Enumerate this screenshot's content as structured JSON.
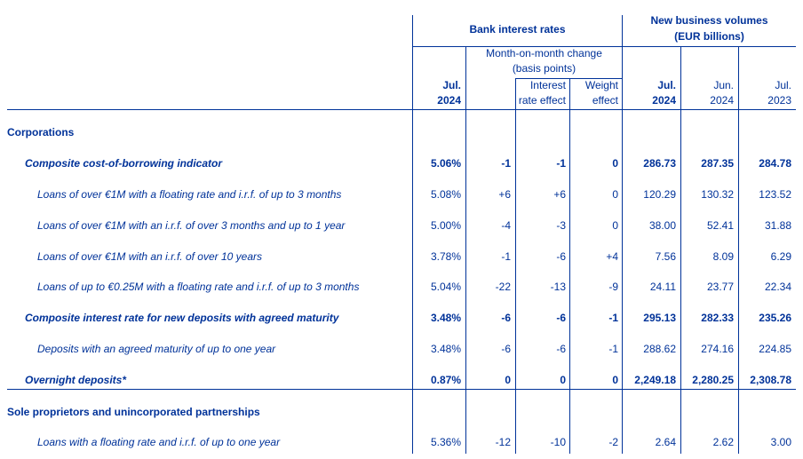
{
  "header": {
    "bank_rates": "Bank interest rates",
    "volumes_l1": "New business volumes",
    "volumes_l2": "(EUR billions)",
    "mom_l1": "Month-on-month change",
    "mom_l2": "(basis points)",
    "col_jul2024_a": "Jul.",
    "col_jul2024_b": "2024",
    "interest_effect_a": "Interest",
    "interest_effect_b": "rate effect",
    "weight_effect_a": "Weight",
    "weight_effect_b": "effect",
    "vol_jul2024_a": "Jul.",
    "vol_jul2024_b": "2024",
    "vol_jun2024_a": "Jun.",
    "vol_jun2024_b": "2024",
    "vol_jul2023_a": "Jul.",
    "vol_jul2023_b": "2023"
  },
  "rows": [
    {
      "label": "Corporations",
      "style": "section",
      "vals": [
        "",
        "",
        "",
        "",
        "",
        "",
        ""
      ]
    },
    {
      "label": "Composite cost-of-borrowing indicator",
      "style": "bold-italic",
      "vals": [
        "5.06%",
        "-1",
        "-1",
        "0",
        "286.73",
        "287.35",
        "284.78"
      ]
    },
    {
      "label": "Loans of over €1M with a floating rate and i.r.f. of up to 3 months",
      "style": "italic",
      "vals": [
        "5.08%",
        "+6",
        "+6",
        "0",
        "120.29",
        "130.32",
        "123.52"
      ]
    },
    {
      "label": "Loans of over €1M with an i.r.f. of over 3 months and up to 1 year",
      "style": "italic",
      "vals": [
        "5.00%",
        "-4",
        "-3",
        "0",
        "38.00",
        "52.41",
        "31.88"
      ]
    },
    {
      "label": "Loans of over €1M with an i.r.f. of over 10 years",
      "style": "italic",
      "vals": [
        "3.78%",
        "-1",
        "-6",
        "+4",
        "7.56",
        "8.09",
        "6.29"
      ]
    },
    {
      "label": "Loans of up to €0.25M with a floating rate and i.r.f. of up to 3 months",
      "style": "italic",
      "vals": [
        "5.04%",
        "-22",
        "-13",
        "-9",
        "24.11",
        "23.77",
        "22.34"
      ]
    },
    {
      "label": "Composite interest rate for new deposits with agreed maturity",
      "style": "bold-italic",
      "vals": [
        "3.48%",
        "-6",
        "-6",
        "-1",
        "295.13",
        "282.33",
        "235.26"
      ]
    },
    {
      "label": "Deposits with an agreed maturity of up to one year",
      "style": "italic",
      "vals": [
        "3.48%",
        "-6",
        "-6",
        "-1",
        "288.62",
        "274.16",
        "224.85"
      ]
    },
    {
      "label": "Overnight deposits*",
      "style": "bold-italic",
      "vals": [
        "0.87%",
        "0",
        "0",
        "0",
        "2,249.18",
        "2,280.25",
        "2,308.78"
      ]
    },
    {
      "label": "Sole proprietors and unincorporated partnerships",
      "style": "section",
      "vals": [
        "",
        "",
        "",
        "",
        "",
        "",
        ""
      ]
    },
    {
      "label": "Loans with a floating rate and i.r.f. of up to one year",
      "style": "italic",
      "vals": [
        "5.36%",
        "-12",
        "-10",
        "-2",
        "2.64",
        "2.62",
        "3.00"
      ]
    }
  ]
}
